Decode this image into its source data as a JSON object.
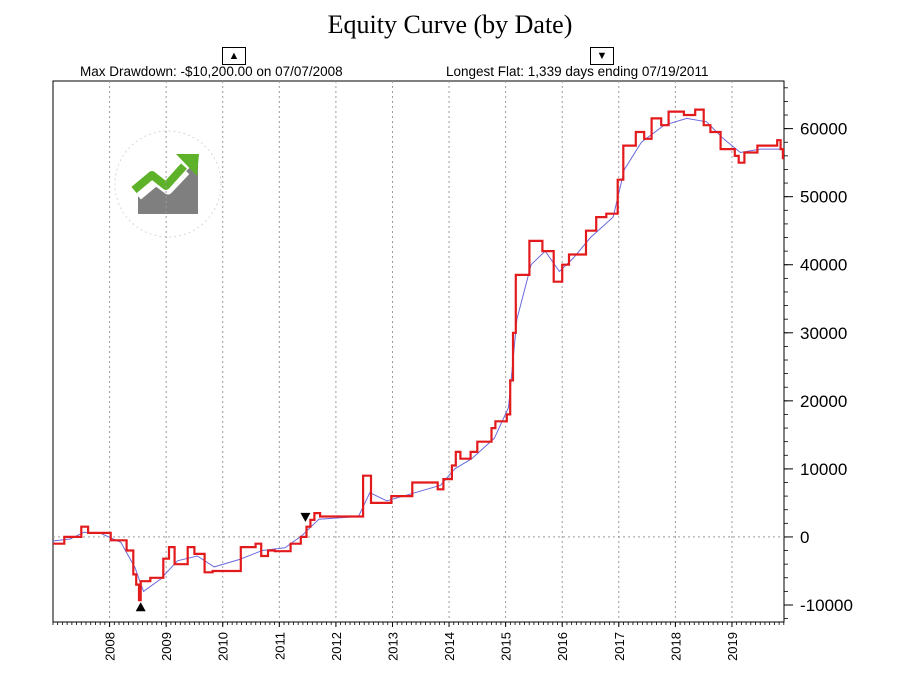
{
  "chart_data": {
    "type": "line",
    "title": "Equity Curve (by Date)",
    "xlabel": "",
    "ylabel": "",
    "stats": {
      "max_drawdown": "Max Drawdown: -$10,200.00 on 07/07/2008",
      "longest_flat": "Longest Flat: 1,339 days ending 07/19/2011"
    },
    "markers": {
      "up": "▲",
      "down": "▼"
    },
    "x_ticks": [
      "2008",
      "2009",
      "2010",
      "2011",
      "2012",
      "2013",
      "2014",
      "2015",
      "2016",
      "2017",
      "2018",
      "2019"
    ],
    "y_ticks": [
      -10000,
      0,
      10000,
      20000,
      30000,
      40000,
      50000,
      60000
    ],
    "y_tick_labels": [
      "-10000",
      "0",
      "10000",
      "20000",
      "30000",
      "40000",
      "50000",
      "60000"
    ],
    "xlim": [
      2007.0,
      2019.92
    ],
    "ylim": [
      -12500,
      67000
    ],
    "grid": {
      "x": true,
      "zero_line": true
    },
    "series": [
      {
        "color": "#e31a1c",
        "points": [
          [
            2007.0,
            -1000
          ],
          [
            2007.2,
            -1000
          ],
          [
            2007.2,
            0
          ],
          [
            2007.5,
            0
          ],
          [
            2007.5,
            1500
          ],
          [
            2007.62,
            1500
          ],
          [
            2007.62,
            600
          ],
          [
            2008.02,
            600
          ],
          [
            2008.02,
            -500
          ],
          [
            2008.3,
            -500
          ],
          [
            2008.3,
            -2000
          ],
          [
            2008.42,
            -2000
          ],
          [
            2008.42,
            -5500
          ],
          [
            2008.47,
            -5500
          ],
          [
            2008.47,
            -7000
          ],
          [
            2008.52,
            -7000
          ],
          [
            2008.52,
            -9300
          ],
          [
            2008.55,
            -9300
          ],
          [
            2008.55,
            -6500
          ],
          [
            2008.72,
            -6500
          ],
          [
            2008.72,
            -6000
          ],
          [
            2008.95,
            -6000
          ],
          [
            2008.95,
            -3200
          ],
          [
            2009.05,
            -3200
          ],
          [
            2009.05,
            -1500
          ],
          [
            2009.15,
            -1500
          ],
          [
            2009.15,
            -4000
          ],
          [
            2009.38,
            -4000
          ],
          [
            2009.38,
            -1500
          ],
          [
            2009.5,
            -1500
          ],
          [
            2009.5,
            -2500
          ],
          [
            2009.68,
            -2500
          ],
          [
            2009.68,
            -5200
          ],
          [
            2009.82,
            -5200
          ],
          [
            2009.82,
            -5000
          ],
          [
            2010.32,
            -5000
          ],
          [
            2010.32,
            -1500
          ],
          [
            2010.58,
            -1500
          ],
          [
            2010.58,
            -1000
          ],
          [
            2010.68,
            -1000
          ],
          [
            2010.68,
            -2800
          ],
          [
            2010.8,
            -2800
          ],
          [
            2010.8,
            -2000
          ],
          [
            2010.92,
            -2000
          ],
          [
            2010.92,
            -2100
          ],
          [
            2011.2,
            -2100
          ],
          [
            2011.2,
            -1000
          ],
          [
            2011.38,
            -1000
          ],
          [
            2011.38,
            0
          ],
          [
            2011.48,
            0
          ],
          [
            2011.48,
            1500
          ],
          [
            2011.55,
            1500
          ],
          [
            2011.55,
            2500
          ],
          [
            2011.62,
            2500
          ],
          [
            2011.62,
            3500
          ],
          [
            2011.72,
            3500
          ],
          [
            2011.72,
            3000
          ],
          [
            2012.48,
            3000
          ],
          [
            2012.48,
            9000
          ],
          [
            2012.62,
            9000
          ],
          [
            2012.62,
            5000
          ],
          [
            2012.98,
            5000
          ],
          [
            2012.98,
            6000
          ],
          [
            2013.35,
            6000
          ],
          [
            2013.35,
            8000
          ],
          [
            2013.8,
            8000
          ],
          [
            2013.8,
            7000
          ],
          [
            2013.9,
            7000
          ],
          [
            2013.9,
            8500
          ],
          [
            2014.05,
            8500
          ],
          [
            2014.05,
            10500
          ],
          [
            2014.12,
            10500
          ],
          [
            2014.12,
            12500
          ],
          [
            2014.2,
            12500
          ],
          [
            2014.2,
            11500
          ],
          [
            2014.38,
            11500
          ],
          [
            2014.38,
            12500
          ],
          [
            2014.5,
            12500
          ],
          [
            2014.5,
            14000
          ],
          [
            2014.75,
            14000
          ],
          [
            2014.75,
            16000
          ],
          [
            2014.82,
            16000
          ],
          [
            2014.82,
            17000
          ],
          [
            2015.02,
            17000
          ],
          [
            2015.02,
            18000
          ],
          [
            2015.08,
            18000
          ],
          [
            2015.08,
            23000
          ],
          [
            2015.13,
            23000
          ],
          [
            2015.13,
            30000
          ],
          [
            2015.18,
            30000
          ],
          [
            2015.18,
            38500
          ],
          [
            2015.42,
            38500
          ],
          [
            2015.42,
            43500
          ],
          [
            2015.65,
            43500
          ],
          [
            2015.65,
            42000
          ],
          [
            2015.85,
            42000
          ],
          [
            2015.85,
            37500
          ],
          [
            2016.0,
            37500
          ],
          [
            2016.0,
            40000
          ],
          [
            2016.12,
            40000
          ],
          [
            2016.12,
            41500
          ],
          [
            2016.42,
            41500
          ],
          [
            2016.42,
            45000
          ],
          [
            2016.6,
            45000
          ],
          [
            2016.6,
            47000
          ],
          [
            2016.78,
            47000
          ],
          [
            2016.78,
            47500
          ],
          [
            2016.98,
            47500
          ],
          [
            2016.98,
            52500
          ],
          [
            2017.08,
            52500
          ],
          [
            2017.08,
            57500
          ],
          [
            2017.3,
            57500
          ],
          [
            2017.3,
            59500
          ],
          [
            2017.45,
            59500
          ],
          [
            2017.45,
            58500
          ],
          [
            2017.58,
            58500
          ],
          [
            2017.58,
            61500
          ],
          [
            2017.75,
            61500
          ],
          [
            2017.75,
            60500
          ],
          [
            2017.88,
            60500
          ],
          [
            2017.88,
            62500
          ],
          [
            2018.15,
            62500
          ],
          [
            2018.15,
            62000
          ],
          [
            2018.35,
            62000
          ],
          [
            2018.35,
            62800
          ],
          [
            2018.5,
            62800
          ],
          [
            2018.5,
            60500
          ],
          [
            2018.62,
            60500
          ],
          [
            2018.62,
            59500
          ],
          [
            2018.8,
            59500
          ],
          [
            2018.8,
            57000
          ],
          [
            2019.05,
            57000
          ],
          [
            2019.05,
            56000
          ],
          [
            2019.12,
            56000
          ],
          [
            2019.12,
            55000
          ],
          [
            2019.22,
            55000
          ],
          [
            2019.22,
            56500
          ],
          [
            2019.45,
            56500
          ],
          [
            2019.45,
            57500
          ],
          [
            2019.8,
            57500
          ],
          [
            2019.8,
            58300
          ],
          [
            2019.86,
            58300
          ],
          [
            2019.86,
            57000
          ],
          [
            2019.9,
            57000
          ],
          [
            2019.9,
            55500
          ]
        ]
      },
      {
        "color": "#6a6adf",
        "points": [
          [
            2007.0,
            -600
          ],
          [
            2007.3,
            -300
          ],
          [
            2007.55,
            700
          ],
          [
            2007.85,
            500
          ],
          [
            2008.2,
            -800
          ],
          [
            2008.45,
            -4500
          ],
          [
            2008.6,
            -8000
          ],
          [
            2008.9,
            -6200
          ],
          [
            2009.2,
            -3500
          ],
          [
            2009.55,
            -2800
          ],
          [
            2009.85,
            -4400
          ],
          [
            2010.3,
            -3300
          ],
          [
            2010.7,
            -2000
          ],
          [
            2011.1,
            -1600
          ],
          [
            2011.4,
            200
          ],
          [
            2011.7,
            2600
          ],
          [
            2012.4,
            3000
          ],
          [
            2012.6,
            6500
          ],
          [
            2012.9,
            5300
          ],
          [
            2013.4,
            6500
          ],
          [
            2013.85,
            7600
          ],
          [
            2014.1,
            10000
          ],
          [
            2014.4,
            11500
          ],
          [
            2014.8,
            14500
          ],
          [
            2015.05,
            19000
          ],
          [
            2015.2,
            32000
          ],
          [
            2015.45,
            40000
          ],
          [
            2015.7,
            42000
          ],
          [
            2015.95,
            39000
          ],
          [
            2016.2,
            41000
          ],
          [
            2016.5,
            44000
          ],
          [
            2016.9,
            47000
          ],
          [
            2017.1,
            54000
          ],
          [
            2017.4,
            58000
          ],
          [
            2017.8,
            60500
          ],
          [
            2018.2,
            61500
          ],
          [
            2018.55,
            61000
          ],
          [
            2018.85,
            58500
          ],
          [
            2019.15,
            56500
          ],
          [
            2019.5,
            57000
          ],
          [
            2019.9,
            57000
          ]
        ]
      }
    ],
    "drawdown_marker": {
      "x": 2008.55,
      "y": -9300
    },
    "flat_end_marker": {
      "x": 2011.55,
      "y": 2500
    }
  }
}
